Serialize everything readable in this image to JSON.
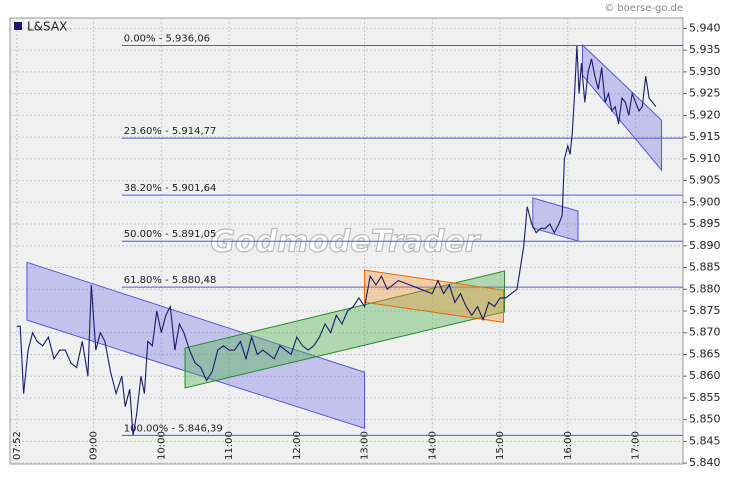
{
  "chart_data": {
    "type": "line",
    "copyright": "© boerse-go.de",
    "watermark": "GodmodeTrader",
    "xlim": [
      466,
      1062
    ],
    "xticks": [
      {
        "value": 472,
        "label": "07:52"
      },
      {
        "value": 540,
        "label": "09:00"
      },
      {
        "value": 600,
        "label": "10:00"
      },
      {
        "value": 660,
        "label": "11:00"
      },
      {
        "value": 720,
        "label": "12:00"
      },
      {
        "value": 780,
        "label": "13:00"
      },
      {
        "value": 840,
        "label": "14:00"
      },
      {
        "value": 900,
        "label": "15:00"
      },
      {
        "value": 960,
        "label": "16:00"
      },
      {
        "value": 1020,
        "label": "17:00"
      }
    ],
    "ylim": [
      5.8398,
      5.9424
    ],
    "yticks": [
      {
        "value": 5.84,
        "label": "5.840"
      },
      5.845,
      {
        "value": 5.85,
        "label": "5.850"
      },
      5.855,
      {
        "value": 5.86,
        "label": "5.860"
      },
      5.865,
      {
        "value": 5.87,
        "label": "5.870"
      },
      5.875,
      {
        "value": 5.88,
        "label": "5.880"
      },
      5.885,
      {
        "value": 5.89,
        "label": "5.890"
      },
      5.895,
      {
        "value": 5.9,
        "label": "5.900"
      },
      5.905,
      {
        "value": 5.91,
        "label": "5.910"
      },
      5.915,
      {
        "value": 5.92,
        "label": "5.920"
      },
      5.925,
      {
        "value": 5.93,
        "label": "5.930"
      },
      5.935,
      {
        "value": 5.94,
        "label": "5.940"
      }
    ],
    "grid": true,
    "series": [
      {
        "name": "L&SAX",
        "color": "#1a1a6e",
        "x": [
          472,
          475,
          478,
          482,
          486,
          490,
          495,
          500,
          505,
          510,
          515,
          520,
          525,
          530,
          535,
          538,
          542,
          546,
          550,
          555,
          560,
          565,
          568,
          572,
          575,
          578,
          582,
          585,
          588,
          592,
          596,
          600,
          604,
          608,
          612,
          616,
          620,
          625,
          630,
          635,
          640,
          645,
          650,
          655,
          660,
          665,
          670,
          675,
          680,
          685,
          690,
          695,
          700,
          705,
          710,
          715,
          720,
          725,
          730,
          735,
          740,
          745,
          750,
          755,
          760,
          765,
          770,
          775,
          780,
          785,
          790,
          795,
          800,
          810,
          820,
          830,
          840,
          845,
          850,
          855,
          860,
          865,
          870,
          875,
          880,
          885,
          890,
          895,
          900,
          905,
          910,
          915,
          918,
          921,
          924,
          928,
          932,
          936,
          940,
          944,
          948,
          952,
          955,
          957,
          960,
          962,
          964,
          966,
          968,
          970,
          972,
          975,
          978,
          981,
          984,
          987,
          990,
          993,
          996,
          999,
          1002,
          1005,
          1008,
          1011,
          1014,
          1017,
          1020,
          1023,
          1026,
          1029,
          1032,
          1035,
          1038
        ],
        "values": [
          5.8715,
          5.8715,
          5.856,
          5.866,
          5.87,
          5.868,
          5.867,
          5.869,
          5.864,
          5.866,
          5.866,
          5.863,
          5.862,
          5.868,
          5.86,
          5.881,
          5.866,
          5.87,
          5.868,
          5.861,
          5.856,
          5.86,
          5.853,
          5.857,
          5.8464,
          5.851,
          5.86,
          5.856,
          5.868,
          5.867,
          5.875,
          5.87,
          5.874,
          5.876,
          5.866,
          5.872,
          5.87,
          5.866,
          5.863,
          5.862,
          5.859,
          5.861,
          5.866,
          5.867,
          5.866,
          5.866,
          5.868,
          5.864,
          5.869,
          5.865,
          5.866,
          5.865,
          5.864,
          5.867,
          5.866,
          5.865,
          5.869,
          5.867,
          5.866,
          5.867,
          5.869,
          5.872,
          5.87,
          5.874,
          5.872,
          5.875,
          5.876,
          5.878,
          5.876,
          5.883,
          5.881,
          5.883,
          5.88,
          5.882,
          5.881,
          5.88,
          5.879,
          5.882,
          5.879,
          5.881,
          5.877,
          5.879,
          5.876,
          5.874,
          5.876,
          5.873,
          5.877,
          5.876,
          5.878,
          5.878,
          5.879,
          5.88,
          5.885,
          5.89,
          5.899,
          5.895,
          5.893,
          5.894,
          5.894,
          5.895,
          5.893,
          5.895,
          5.897,
          5.91,
          5.913,
          5.911,
          5.916,
          5.925,
          5.936,
          5.925,
          5.932,
          5.923,
          5.93,
          5.933,
          5.929,
          5.926,
          5.931,
          5.923,
          5.925,
          5.921,
          5.922,
          5.918,
          5.924,
          5.923,
          5.92,
          5.925,
          5.923,
          5.921,
          5.922,
          5.929,
          5.924,
          5.923,
          5.922
        ]
      }
    ],
    "fib_levels": [
      {
        "label": "0.00% - 5.936,06",
        "value": 5.93606,
        "start": 565
      },
      {
        "label": "23.60% - 5.914,77",
        "value": 5.91477,
        "start": 565
      },
      {
        "label": "38.20% - 5.901,64",
        "value": 5.90164,
        "start": 565
      },
      {
        "label": "50.00% - 5.891,05",
        "value": 5.89105,
        "start": 565
      },
      {
        "label": "61.80% - 5.880,48",
        "value": 5.88048,
        "start": 565
      },
      {
        "label": "100.00% - 5.846,39",
        "value": 5.84639,
        "start": 565
      }
    ],
    "fib_color": "#5555dd",
    "channels": [
      {
        "fill": "rgba(110,110,230,0.35)",
        "stroke": "#5555dd",
        "top": [
          [
            481,
            5.8862
          ],
          [
            780,
            5.8609
          ]
        ],
        "bottom": [
          [
            481,
            5.8729
          ],
          [
            780,
            5.848
          ]
        ]
      },
      {
        "fill": "rgba(80,180,80,0.4)",
        "stroke": "#228822",
        "top": [
          [
            621,
            5.8665
          ],
          [
            904,
            5.8842
          ]
        ],
        "bottom": [
          [
            621,
            5.8573
          ],
          [
            904,
            5.8748
          ]
        ]
      },
      {
        "fill": "rgba(240,150,60,0.4)",
        "stroke": "#ee6600",
        "top": [
          [
            780,
            5.8844
          ],
          [
            903,
            5.8798
          ]
        ],
        "bottom": [
          [
            780,
            5.877
          ],
          [
            903,
            5.8724
          ]
        ]
      },
      {
        "fill": "rgba(110,110,230,0.35)",
        "stroke": "#5555dd",
        "top": [
          [
            929,
            5.901
          ],
          [
            969,
            5.898
          ]
        ],
        "bottom": [
          [
            929,
            5.8941
          ],
          [
            969,
            5.8911
          ]
        ]
      },
      {
        "fill": "rgba(110,110,230,0.35)",
        "stroke": "#5555dd",
        "top": [
          [
            973,
            5.9362
          ],
          [
            1043,
            5.9189
          ]
        ],
        "bottom": [
          [
            973,
            5.9292
          ],
          [
            1043,
            5.9074
          ]
        ]
      }
    ]
  }
}
